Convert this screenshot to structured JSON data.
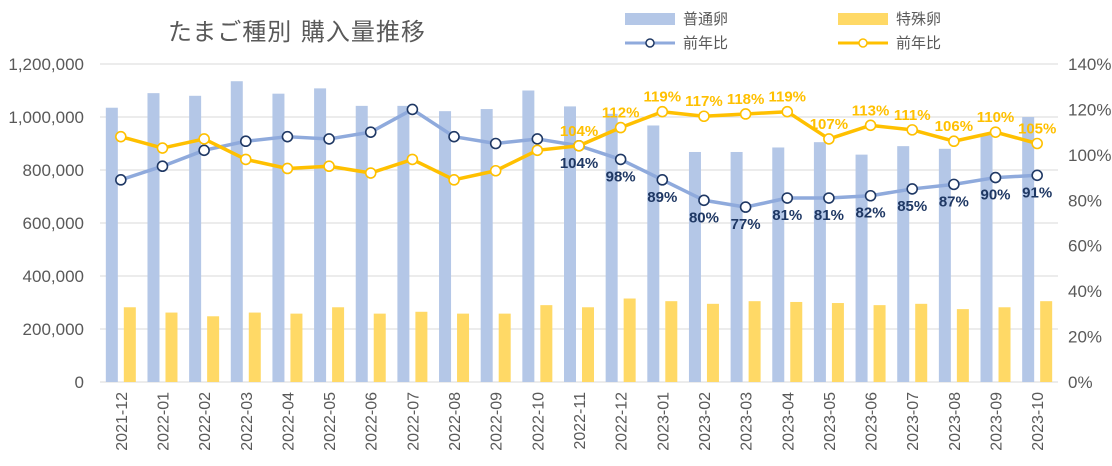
{
  "title": "たまご種別 購入量推移",
  "legend": {
    "normal_bar": "普通卵",
    "special_bar": "特殊卵",
    "normal_line": "前年比",
    "special_line": "前年比"
  },
  "colors": {
    "normal_bar": "#B4C7E7",
    "special_bar": "#FFD966",
    "normal_line": "#8FAADC",
    "normal_marker_edge": "#1F3864",
    "special_line": "#FFC000",
    "normal_label": "#1F3864",
    "special_label": "#FFC000",
    "axis_text": "#595959",
    "grid": "#D9D9D9"
  },
  "chart_data": {
    "type": "bar",
    "title": "たまご種別 購入量推移",
    "categories": [
      "2021-12",
      "2022-01",
      "2022-02",
      "2022-03",
      "2022-04",
      "2022-05",
      "2022-06",
      "2022-07",
      "2022-08",
      "2022-09",
      "2022-10",
      "2022-11",
      "2022-12",
      "2023-01",
      "2023-02",
      "2023-03",
      "2023-04",
      "2023-05",
      "2023-06",
      "2023-07",
      "2023-08",
      "2023-09",
      "2023-10"
    ],
    "y_left": {
      "min": 0,
      "max": 1200000,
      "step": 200000,
      "tick_labels": [
        "0",
        "200,000",
        "400,000",
        "600,000",
        "800,000",
        "1,000,000",
        "1,200,000"
      ]
    },
    "y_right": {
      "min": 0,
      "max": 1.4,
      "step": 0.2,
      "tick_labels": [
        "0%",
        "20%",
        "40%",
        "60%",
        "80%",
        "100%",
        "120%",
        "140%"
      ]
    },
    "grid": true,
    "series": [
      {
        "name": "普通卵",
        "kind": "bar",
        "axis": "left",
        "values": [
          1035000,
          1090000,
          1080000,
          1135000,
          1088000,
          1108000,
          1042000,
          1042000,
          1022000,
          1030000,
          1100000,
          1040000,
          1012000,
          968000,
          868000,
          868000,
          885000,
          905000,
          858000,
          890000,
          880000,
          935000,
          1000000
        ]
      },
      {
        "name": "特殊卵",
        "kind": "bar",
        "axis": "left",
        "values": [
          282000,
          262000,
          248000,
          262000,
          258000,
          282000,
          258000,
          265000,
          258000,
          258000,
          290000,
          282000,
          315000,
          305000,
          295000,
          305000,
          302000,
          298000,
          290000,
          295000,
          275000,
          282000,
          305000
        ]
      },
      {
        "name": "前年比",
        "kind": "line",
        "axis": "right",
        "ref": "普通卵",
        "values": [
          0.89,
          0.95,
          1.02,
          1.06,
          1.08,
          1.07,
          1.1,
          1.2,
          1.08,
          1.05,
          1.07,
          1.04,
          0.98,
          0.89,
          0.8,
          0.77,
          0.81,
          0.81,
          0.82,
          0.85,
          0.87,
          0.9,
          0.91
        ],
        "labels": [
          "",
          "",
          "",
          "",
          "",
          "",
          "",
          "",
          "",
          "",
          "",
          "104%",
          "98%",
          "89%",
          "80%",
          "77%",
          "81%",
          "81%",
          "82%",
          "85%",
          "87%",
          "90%",
          "91%"
        ]
      },
      {
        "name": "前年比",
        "kind": "line",
        "axis": "right",
        "ref": "特殊卵",
        "values": [
          1.08,
          1.03,
          1.07,
          0.98,
          0.94,
          0.95,
          0.92,
          0.98,
          0.89,
          0.93,
          1.02,
          1.04,
          1.12,
          1.19,
          1.17,
          1.18,
          1.19,
          1.07,
          1.13,
          1.11,
          1.06,
          1.1,
          1.05
        ],
        "labels": [
          "",
          "",
          "",
          "",
          "",
          "",
          "",
          "",
          "",
          "",
          "",
          "104%",
          "112%",
          "119%",
          "117%",
          "118%",
          "119%",
          "107%",
          "113%",
          "111%",
          "106%",
          "110%",
          "105%"
        ]
      }
    ]
  }
}
